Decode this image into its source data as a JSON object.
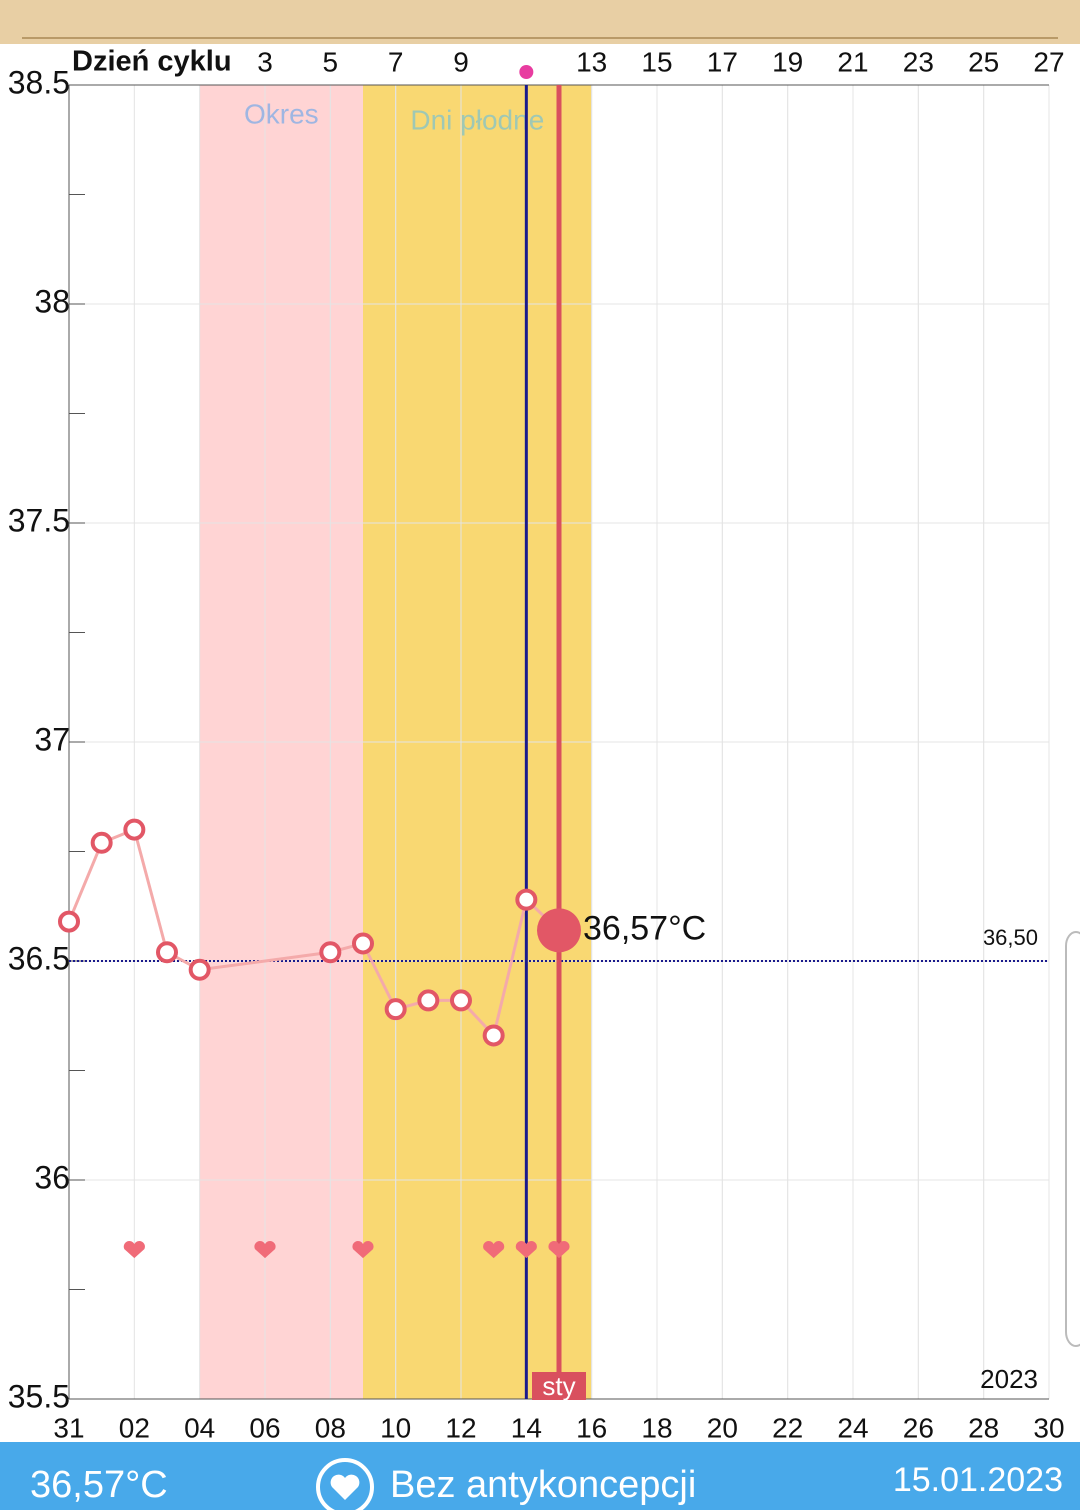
{
  "chart_data": {
    "type": "line",
    "x2_axis_title": "Dzień cyklu",
    "xlim": [
      0,
      30
    ],
    "xticks": [
      {
        "value": 0,
        "label": "31"
      },
      {
        "value": 2,
        "label": "02"
      },
      {
        "value": 4,
        "label": "04"
      },
      {
        "value": 6,
        "label": "06"
      },
      {
        "value": 8,
        "label": "08"
      },
      {
        "value": 10,
        "label": "10"
      },
      {
        "value": 12,
        "label": "12"
      },
      {
        "value": 14,
        "label": "14"
      },
      {
        "value": 16,
        "label": "16"
      },
      {
        "value": 18,
        "label": "18"
      },
      {
        "value": 20,
        "label": "20"
      },
      {
        "value": 22,
        "label": "22"
      },
      {
        "value": 24,
        "label": "24"
      },
      {
        "value": 26,
        "label": "26"
      },
      {
        "value": 28,
        "label": "28"
      },
      {
        "value": 30,
        "label": "30"
      }
    ],
    "x2ticks": [
      {
        "value": 6,
        "label": "3"
      },
      {
        "value": 8,
        "label": "5"
      },
      {
        "value": 10,
        "label": "7"
      },
      {
        "value": 12,
        "label": "9"
      },
      {
        "value": 16,
        "label": "13"
      },
      {
        "value": 18,
        "label": "15"
      },
      {
        "value": 20,
        "label": "17"
      },
      {
        "value": 22,
        "label": "19"
      },
      {
        "value": 24,
        "label": "21"
      },
      {
        "value": 26,
        "label": "23"
      },
      {
        "value": 28,
        "label": "25"
      },
      {
        "value": 30,
        "label": "27"
      }
    ],
    "ylim": [
      35.5,
      38.5
    ],
    "yticks": [
      35.5,
      36,
      36.5,
      37,
      37.5,
      38,
      38.5
    ],
    "y_minor_ticks": [
      35.75,
      36.25,
      36.75,
      37.25,
      37.75,
      38.25
    ],
    "grid": true,
    "bands": [
      {
        "label": "Okres",
        "from": 4,
        "to": 9,
        "color": "#ffd4d4",
        "label_color": "#9fb6e2"
      },
      {
        "label": "Dni płodne",
        "from": 9,
        "to": 16,
        "color": "#f9d872",
        "label_color": "#9fc8b4"
      }
    ],
    "series": [
      {
        "color": "#e25766",
        "line_color": "#f4aaaa",
        "x": [
          0,
          1,
          2,
          3,
          4,
          8,
          9,
          10,
          11,
          12,
          13,
          14
        ],
        "values": [
          36.59,
          36.77,
          36.8,
          36.52,
          36.48,
          36.52,
          36.54,
          36.39,
          36.41,
          36.41,
          36.33,
          36.64
        ]
      }
    ],
    "vlines": [
      {
        "x": 14,
        "color": "#1a1a8c"
      },
      {
        "x": 15,
        "color": "#d9505e",
        "label": "sty"
      }
    ],
    "reference": {
      "value": 36.5,
      "label": "36,50",
      "color": "#1a1a8c"
    },
    "current": {
      "x": 15,
      "value": 36.57,
      "label": "36,57°C",
      "color": "#e25766"
    },
    "hearts": {
      "x": [
        2,
        6,
        9,
        13,
        14,
        15
      ],
      "value": 35.84,
      "color": "#f06b78"
    },
    "year_label": "2023"
  },
  "footer": {
    "temperature": "36,57°C",
    "contraception": "Bez antykoncepcji",
    "date": "15.01.2023"
  }
}
